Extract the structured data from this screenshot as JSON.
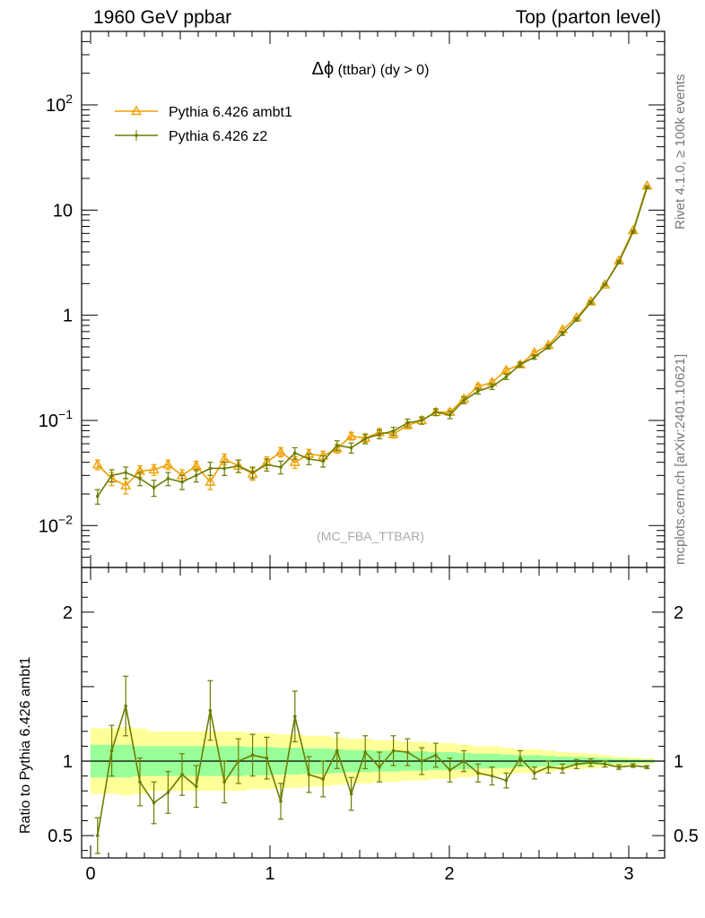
{
  "header": {
    "left": "1960 GeV ppbar",
    "right": "Top (parton level)"
  },
  "side_labels": {
    "rivet": "Rivet 4.1.0, ≥ 100k events",
    "mcplots": "mcplots.cern.ch [arXiv:2401.10621]"
  },
  "colors": {
    "ambt1": "#eea000",
    "z2": "#6b7d00",
    "band_outer": "#ffff99",
    "band_inner": "#99ff99"
  },
  "chart_data": [
    {
      "type": "line",
      "title_symbol": "Δϕ",
      "title_text": " (ttbar) (dy > 0)",
      "watermark": "(MC_FBA_TTBAR)",
      "yscale": "log",
      "xlim": [
        -0.05,
        3.2
      ],
      "ylim": [
        0.004,
        500
      ],
      "y_tick_labels": [
        "10^-2",
        "10^-1",
        "1",
        "10",
        "10^2"
      ],
      "legend": [
        {
          "label": "Pythia 6.426 ambt1",
          "marker": "open-triangle"
        },
        {
          "label": "Pythia 6.426 z2",
          "marker": "dot"
        }
      ],
      "x": [
        0.039,
        0.118,
        0.196,
        0.275,
        0.353,
        0.432,
        0.51,
        0.589,
        0.667,
        0.746,
        0.824,
        0.903,
        0.982,
        1.06,
        1.139,
        1.217,
        1.296,
        1.374,
        1.453,
        1.531,
        1.61,
        1.688,
        1.767,
        1.846,
        1.924,
        2.003,
        2.081,
        2.16,
        2.238,
        2.317,
        2.395,
        2.474,
        2.552,
        2.631,
        2.709,
        2.788,
        2.867,
        2.945,
        3.024,
        3.102
      ],
      "series": [
        {
          "name": "Pythia 6.426 ambt1",
          "values": [
            0.038,
            0.028,
            0.024,
            0.033,
            0.034,
            0.038,
            0.03,
            0.037,
            0.026,
            0.043,
            0.037,
            0.031,
            0.04,
            0.05,
            0.04,
            0.048,
            0.046,
            0.054,
            0.071,
            0.068,
            0.077,
            0.074,
            0.09,
            0.1,
            0.12,
            0.12,
            0.16,
            0.21,
            0.23,
            0.3,
            0.34,
            0.44,
            0.52,
            0.73,
            0.95,
            1.35,
            1.95,
            3.3,
            6.4,
            17
          ],
          "errors": [
            0.004,
            0.004,
            0.004,
            0.004,
            0.004,
            0.004,
            0.004,
            0.004,
            0.004,
            0.005,
            0.005,
            0.004,
            0.005,
            0.005,
            0.005,
            0.005,
            0.005,
            0.005,
            0.006,
            0.006,
            0.006,
            0.006,
            0.007,
            0.007,
            0.008,
            0.008,
            0.01,
            0.011,
            0.012,
            0.014,
            0.015,
            0.017,
            0.019,
            0.024,
            0.03,
            0.04,
            0.05,
            0.08,
            0.12,
            0.3
          ]
        },
        {
          "name": "Pythia 6.426 z2",
          "values": [
            0.019,
            0.03,
            0.032,
            0.028,
            0.023,
            0.028,
            0.026,
            0.03,
            0.035,
            0.035,
            0.037,
            0.032,
            0.038,
            0.036,
            0.049,
            0.043,
            0.041,
            0.058,
            0.055,
            0.067,
            0.074,
            0.079,
            0.095,
            0.1,
            0.12,
            0.113,
            0.155,
            0.19,
            0.21,
            0.26,
            0.34,
            0.4,
            0.5,
            0.67,
            0.91,
            1.32,
            1.96,
            3.2,
            6.2,
            16.4
          ],
          "errors": [
            0.003,
            0.004,
            0.004,
            0.004,
            0.004,
            0.004,
            0.004,
            0.004,
            0.005,
            0.005,
            0.005,
            0.004,
            0.005,
            0.005,
            0.006,
            0.005,
            0.005,
            0.006,
            0.006,
            0.007,
            0.007,
            0.007,
            0.008,
            0.008,
            0.009,
            0.009,
            0.011,
            0.012,
            0.013,
            0.015,
            0.017,
            0.019,
            0.022,
            0.026,
            0.032,
            0.042,
            0.055,
            0.09,
            0.15,
            0.35
          ]
        }
      ]
    },
    {
      "type": "line",
      "ylabel": "Ratio to Pythia 6.426 ambt1",
      "xlim": [
        -0.05,
        3.2
      ],
      "ylim": [
        0.35,
        2.3
      ],
      "x_tick_labels": [
        "0",
        "1",
        "2",
        "3"
      ],
      "y_tick_labels": [
        "0.5",
        "1",
        "2"
      ],
      "reference_line": 1,
      "band_outer": [
        0.22,
        0.22,
        0.23,
        0.22,
        0.2,
        0.2,
        0.2,
        0.2,
        0.2,
        0.2,
        0.2,
        0.19,
        0.19,
        0.18,
        0.18,
        0.17,
        0.17,
        0.16,
        0.15,
        0.15,
        0.14,
        0.14,
        0.13,
        0.13,
        0.12,
        0.12,
        0.11,
        0.1,
        0.1,
        0.09,
        0.08,
        0.08,
        0.07,
        0.06,
        0.055,
        0.05,
        0.04,
        0.03,
        0.025,
        0.02
      ],
      "band_inner": [
        0.11,
        0.11,
        0.11,
        0.1,
        0.1,
        0.1,
        0.1,
        0.1,
        0.1,
        0.1,
        0.1,
        0.095,
        0.095,
        0.09,
        0.09,
        0.085,
        0.085,
        0.08,
        0.075,
        0.075,
        0.07,
        0.07,
        0.065,
        0.065,
        0.06,
        0.06,
        0.055,
        0.05,
        0.05,
        0.045,
        0.04,
        0.04,
        0.035,
        0.03,
        0.028,
        0.025,
        0.02,
        0.015,
        0.012,
        0.01
      ],
      "series": [
        {
          "name": "Pythia 6.426 z2",
          "values": [
            0.5,
            1.07,
            1.37,
            0.86,
            0.72,
            0.79,
            0.91,
            0.83,
            1.34,
            0.86,
            1.0,
            1.04,
            1.02,
            0.73,
            1.3,
            0.91,
            0.88,
            1.07,
            0.78,
            1.06,
            0.96,
            1.07,
            1.06,
            1.0,
            1.04,
            0.94,
            1.0,
            0.92,
            0.9,
            0.87,
            1.02,
            0.92,
            0.96,
            0.95,
            0.98,
            0.99,
            0.98,
            0.96,
            0.97,
            0.96
          ],
          "errors": [
            0.12,
            0.17,
            0.2,
            0.16,
            0.14,
            0.14,
            0.14,
            0.14,
            0.2,
            0.14,
            0.15,
            0.14,
            0.14,
            0.12,
            0.17,
            0.12,
            0.12,
            0.12,
            0.11,
            0.11,
            0.1,
            0.1,
            0.09,
            0.09,
            0.08,
            0.08,
            0.07,
            0.06,
            0.06,
            0.05,
            0.05,
            0.04,
            0.04,
            0.03,
            0.03,
            0.025,
            0.02,
            0.015,
            0.012,
            0.01
          ]
        }
      ]
    }
  ]
}
